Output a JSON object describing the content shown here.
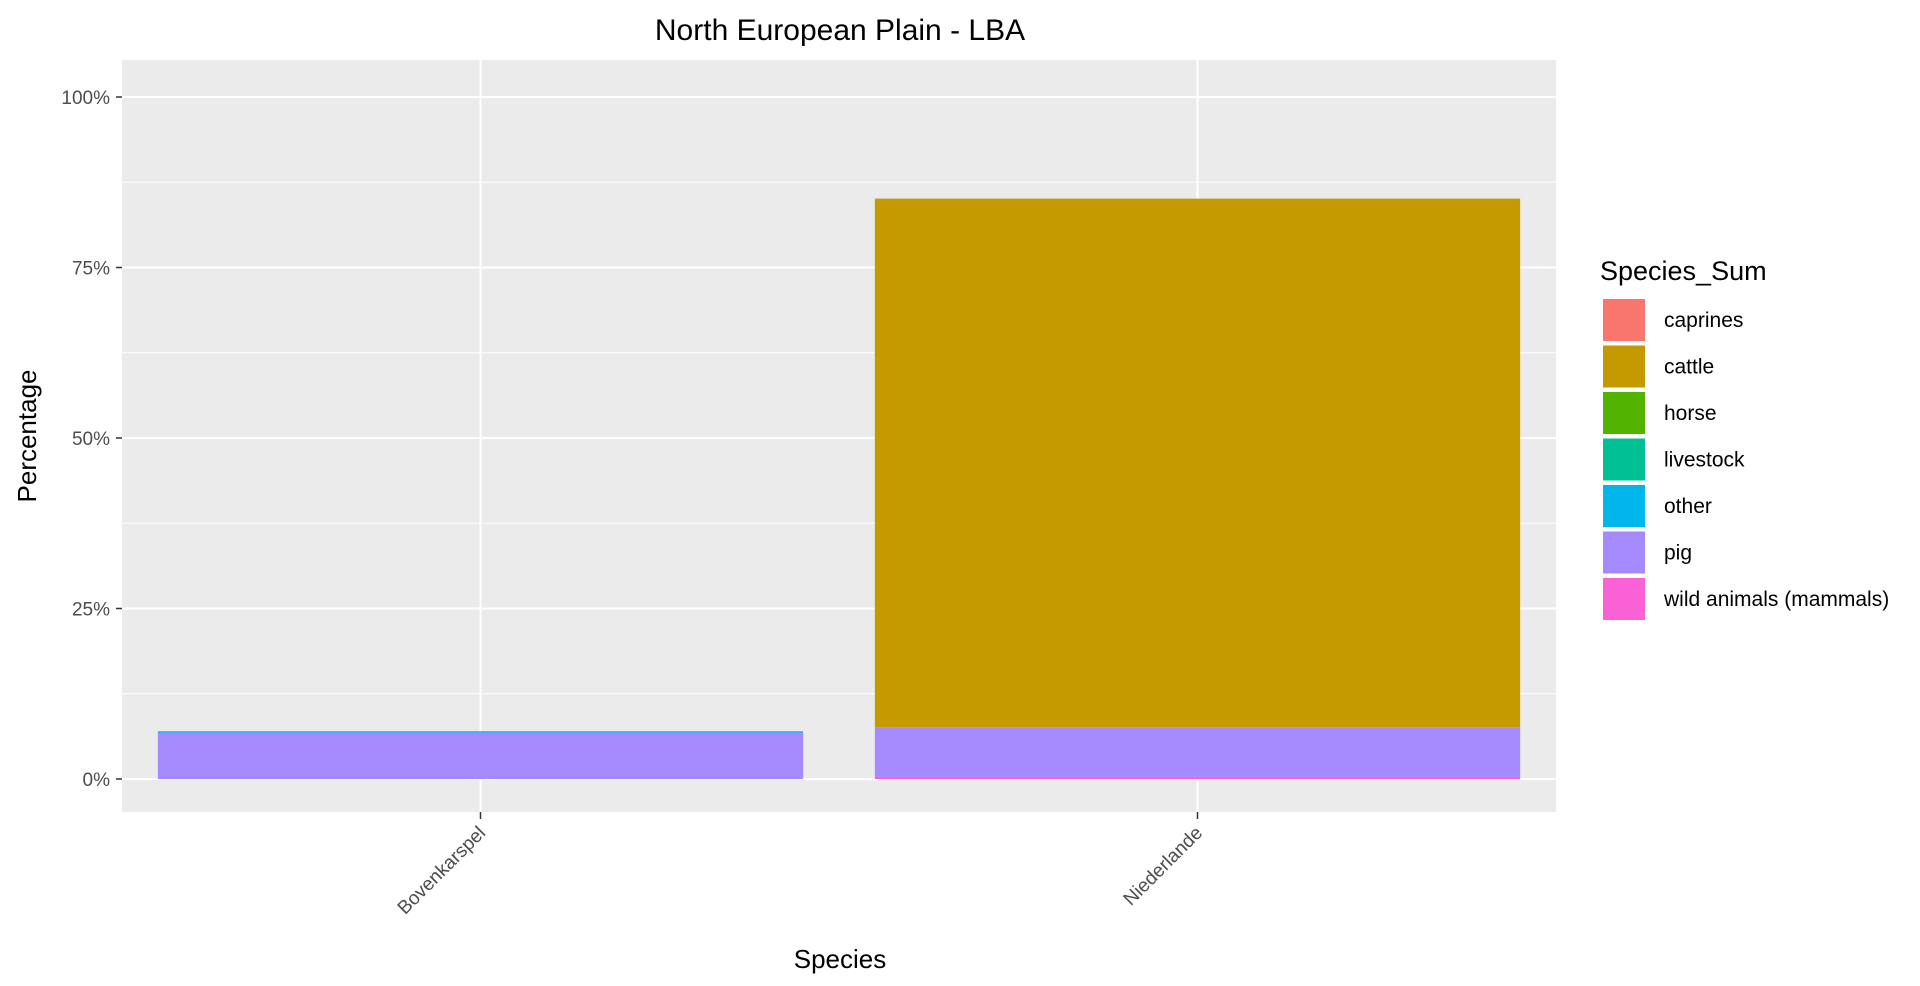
{
  "chart_data": {
    "type": "bar",
    "stacked": true,
    "title": "North European Plain - LBA",
    "xlabel": "Species",
    "ylabel": "Percentage",
    "ylim": [
      0,
      100
    ],
    "y_ticks": [
      "0%",
      "25%",
      "50%",
      "75%",
      "100%"
    ],
    "y_tick_values": [
      0,
      25,
      50,
      75,
      100
    ],
    "categories": [
      "Bovenkarspel",
      "Niederlande"
    ],
    "series": [
      {
        "name": "caprines",
        "color": "#F8766D",
        "values": [
          0,
          0
        ]
      },
      {
        "name": "cattle",
        "color": "#C49A00",
        "values": [
          0,
          77.5
        ]
      },
      {
        "name": "horse",
        "color": "#53B400",
        "values": [
          0,
          0
        ]
      },
      {
        "name": "livestock",
        "color": "#00C094",
        "values": [
          0,
          0
        ]
      },
      {
        "name": "other",
        "color": "#00B6EB",
        "values": [
          0.2,
          0
        ]
      },
      {
        "name": "pig",
        "color": "#A58AFF",
        "values": [
          6.8,
          7.3
        ]
      },
      {
        "name": "wild animals (mammals)",
        "color": "#FB61D7",
        "values": [
          0,
          0.3
        ]
      }
    ],
    "grid": true,
    "legend_title": "Species_Sum",
    "legend_position": "right",
    "panel_background": "#EBEBEB",
    "grid_color": "#FFFFFF"
  }
}
